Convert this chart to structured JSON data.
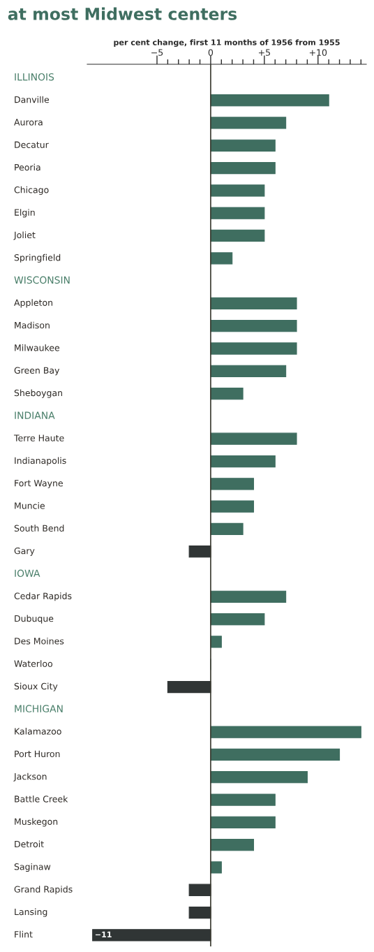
{
  "chart_data": {
    "type": "bar",
    "orientation": "horizontal",
    "title": "at most Midwest centers",
    "xlabel": "per cent change, first 11 months of 1956 from 1955",
    "categories": [
      "ILLINOIS",
      "Danville",
      "Aurora",
      "Decatur",
      "Peoria",
      "Chicago",
      "Elgin",
      "Joliet",
      "Springfield",
      "WISCONSIN",
      "Appleton",
      "Madison",
      "Milwaukee",
      "Green Bay",
      "Sheboygan",
      "INDIANA",
      "Terre Haute",
      "Indianapolis",
      "Fort Wayne",
      "Muncie",
      "South Bend",
      "Gary",
      "IOWA",
      "Cedar Rapids",
      "Dubuque",
      "Des Moines",
      "Waterloo",
      "Sioux City",
      "MICHIGAN",
      "Kalamazoo",
      "Port Huron",
      "Jackson",
      "Battle Creek",
      "Muskegon",
      "Detroit",
      "Saginaw",
      "Grand Rapids",
      "Lansing",
      "Flint"
    ],
    "values": [
      null,
      11,
      7,
      6,
      6,
      5,
      5,
      5,
      2,
      null,
      8,
      8,
      8,
      7,
      3,
      null,
      8,
      6,
      4,
      4,
      3,
      -2,
      null,
      7,
      5,
      1,
      0,
      -4,
      null,
      14,
      12,
      9,
      6,
      6,
      4,
      1,
      -2,
      -2,
      -11
    ],
    "colors": [
      null,
      "#3f6e60",
      "#3f6e60",
      "#3f6e60",
      "#3f6e60",
      "#3f6e60",
      "#3f6e60",
      "#3f6e60",
      "#3f6e60",
      null,
      "#3f6e60",
      "#3f6e60",
      "#3f6e60",
      "#3f6e60",
      "#3f6e60",
      null,
      "#3f6e60",
      "#3f6e60",
      "#3f6e60",
      "#3f6e60",
      "#3f6e60",
      "#303535",
      null,
      "#3f6e60",
      "#3f6e60",
      "#3f6e60",
      "#3f6e60",
      "#303535",
      null,
      "#3f6e60",
      "#3f6e60",
      "#3f6e60",
      "#3f6e60",
      "#3f6e60",
      "#3f6e60",
      "#3f6e60",
      "#303535",
      "#303535",
      "#303535"
    ],
    "value_labels": [
      null,
      null,
      null,
      null,
      null,
      null,
      null,
      null,
      null,
      null,
      null,
      null,
      null,
      null,
      null,
      null,
      null,
      null,
      null,
      null,
      null,
      null,
      null,
      null,
      null,
      null,
      null,
      null,
      null,
      null,
      null,
      null,
      null,
      null,
      null,
      null,
      null,
      null,
      "−11"
    ],
    "xlim": [
      -11.5,
      14.5
    ],
    "xticks": [
      {
        "value": -5,
        "label": "−5"
      },
      {
        "value": -4,
        "label": null
      },
      {
        "value": -3,
        "label": null
      },
      {
        "value": -2,
        "label": null
      },
      {
        "value": -1,
        "label": null
      },
      0,
      {
        "value": 1,
        "label": null
      },
      {
        "value": 2,
        "label": null
      },
      {
        "value": 3,
        "label": null
      },
      {
        "value": 4,
        "label": null
      },
      {
        "value": 5,
        "label": "+5"
      },
      {
        "value": 6,
        "label": null
      },
      {
        "value": 7,
        "label": null
      },
      {
        "value": 8,
        "label": null
      },
      {
        "value": 9,
        "label": null
      },
      {
        "value": 10,
        "label": "+10"
      },
      {
        "value": 11,
        "label": null
      },
      {
        "value": 12,
        "label": null
      },
      {
        "value": 13,
        "label": null
      },
      {
        "value": 14,
        "label": null
      }
    ],
    "ref_lines": [
      {
        "axis": "x",
        "value": 0,
        "color": "#3a3a30"
      }
    ],
    "grid": false,
    "legend": false
  }
}
